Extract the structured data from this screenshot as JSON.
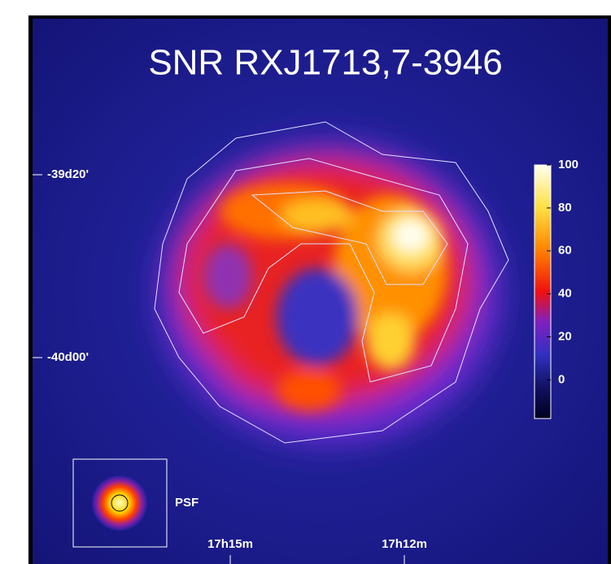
{
  "title": "SNR RXJ1713,7-3946",
  "colorbar": {
    "ticks": [
      100,
      80,
      60,
      40,
      20,
      0
    ],
    "range": [
      -18,
      100
    ]
  },
  "dec_labels": [
    "-39d20'",
    "-40d00'"
  ],
  "ra_labels": [
    "17h15m",
    "17h12m"
  ],
  "psf_label": "PSF"
}
